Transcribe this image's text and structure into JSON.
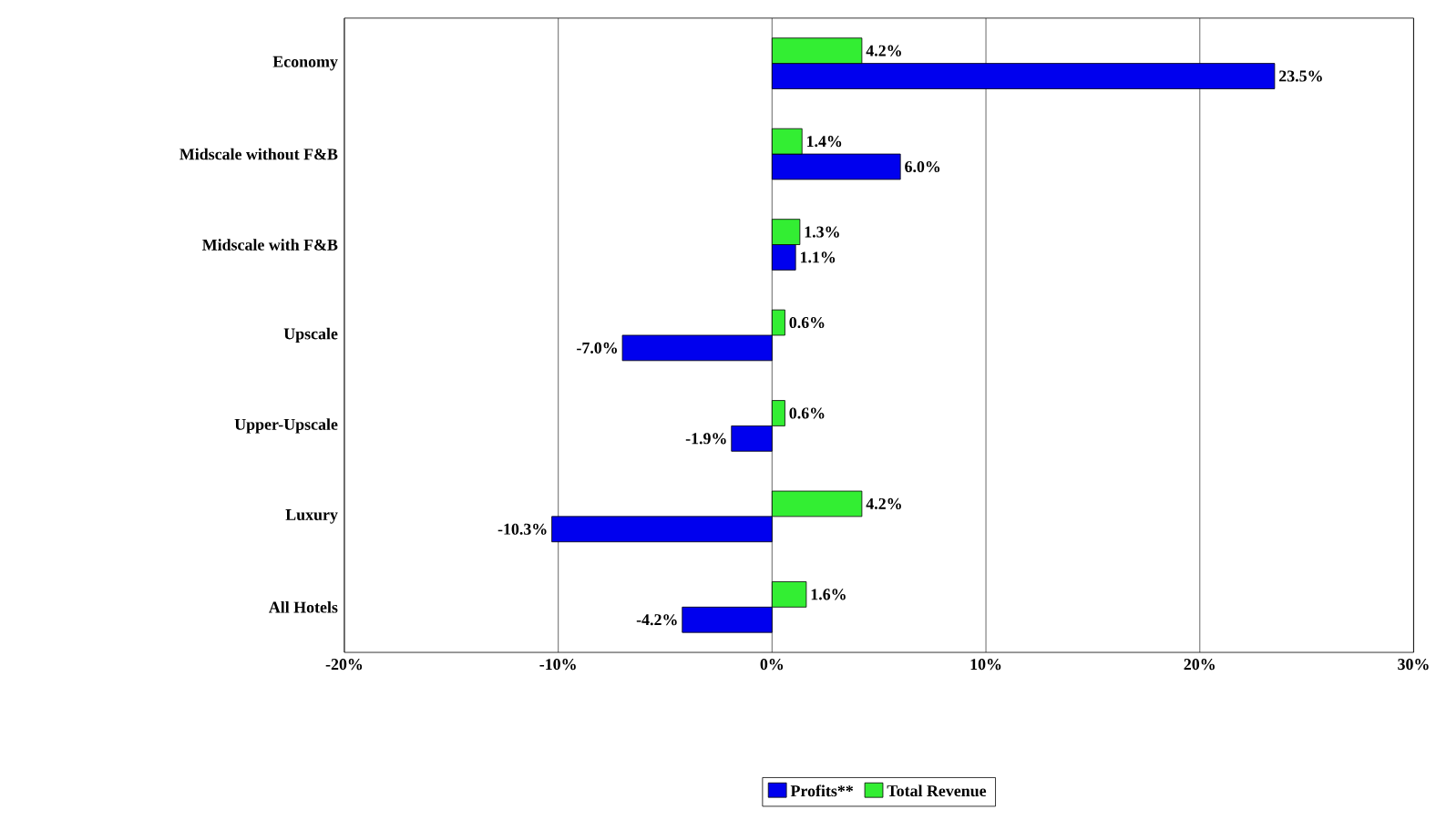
{
  "chart_data": {
    "type": "bar",
    "orientation": "horizontal",
    "categories": [
      "Economy",
      "Midscale without F&B",
      "Midscale with F&B",
      "Upscale",
      "Upper-Upscale",
      "Luxury",
      "All Hotels"
    ],
    "series": [
      {
        "name": "Profits**",
        "color": "#0000ee",
        "values": [
          23.5,
          6.0,
          1.1,
          -7.0,
          -1.9,
          -10.3,
          -4.2
        ],
        "value_labels": [
          "23.5%",
          "6.0%",
          "1.1%",
          "-7.0%",
          "-1.9%",
          "-10.3%",
          "-4.2%"
        ]
      },
      {
        "name": "Total Revenue",
        "color": "#33ee33",
        "values": [
          4.2,
          1.4,
          1.3,
          0.6,
          0.6,
          4.2,
          1.6
        ],
        "value_labels": [
          "4.2%",
          "1.4%",
          "1.3%",
          "0.6%",
          "0.6%",
          "4.2%",
          "1.6%"
        ]
      }
    ],
    "xlim": [
      -20,
      30
    ],
    "xticks": [
      {
        "value": -20,
        "label": "-20%"
      },
      {
        "value": -10,
        "label": "-10%"
      },
      {
        "value": 0,
        "label": "0%"
      },
      {
        "value": 10,
        "label": "10%"
      },
      {
        "value": 20,
        "label": "20%"
      },
      {
        "value": 30,
        "label": "30%"
      }
    ],
    "grid": "x",
    "legend": "bottom"
  }
}
